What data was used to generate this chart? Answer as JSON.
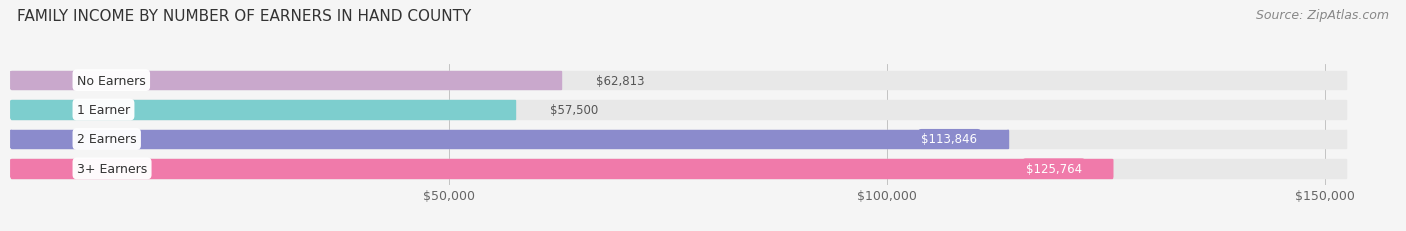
{
  "title": "FAMILY INCOME BY NUMBER OF EARNERS IN HAND COUNTY",
  "source": "Source: ZipAtlas.com",
  "categories": [
    "No Earners",
    "1 Earner",
    "2 Earners",
    "3+ Earners"
  ],
  "values": [
    62813,
    57500,
    113846,
    125764
  ],
  "bar_colors": [
    "#c9a8cc",
    "#7dcece",
    "#8b8bcc",
    "#f07aaa"
  ],
  "bar_bg_color": "#e8e8e8",
  "value_labels": [
    "$62,813",
    "$57,500",
    "$113,846",
    "$125,764"
  ],
  "value_inside": [
    false,
    false,
    true,
    true
  ],
  "x_ticks": [
    50000,
    100000,
    150000
  ],
  "x_tick_labels": [
    "$50,000",
    "$100,000",
    "$150,000"
  ],
  "xlim": [
    0,
    158000
  ],
  "title_fontsize": 11,
  "source_fontsize": 9,
  "bar_label_fontsize": 9,
  "value_fontsize": 8.5,
  "tick_fontsize": 9,
  "background_color": "#f5f5f5"
}
